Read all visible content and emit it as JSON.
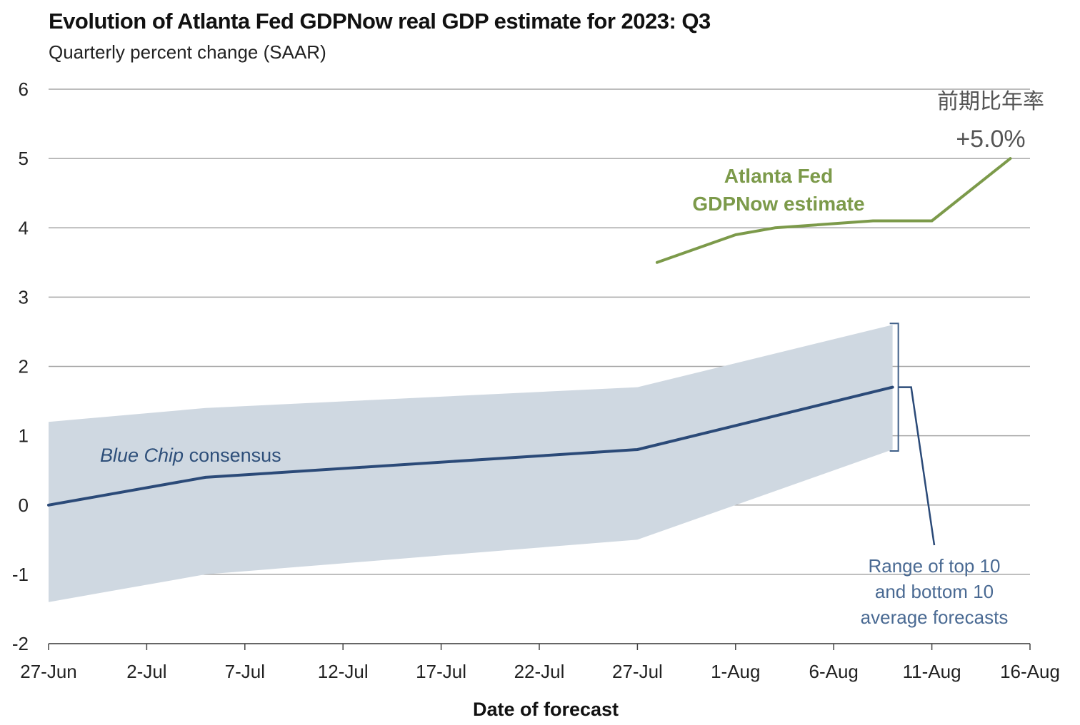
{
  "chart_data": {
    "type": "line",
    "title": "Evolution of Atlanta Fed GDPNow real GDP estimate for 2023: Q3",
    "subtitle": "Quarterly percent change (SAAR)",
    "xlabel": "Date of forecast",
    "ylabel": "",
    "ylim": [
      -2,
      6
    ],
    "y_ticks": [
      "6",
      "5",
      "4",
      "3",
      "2",
      "1",
      "0",
      "-1",
      "-2"
    ],
    "x_ticks": [
      "27-Jun",
      "2-Jul",
      "7-Jul",
      "12-Jul",
      "17-Jul",
      "22-Jul",
      "27-Jul",
      "1-Aug",
      "6-Aug",
      "11-Aug",
      "16-Aug"
    ],
    "grid": true,
    "series": [
      {
        "name": "Blue Chip consensus",
        "color": "#2b4a78",
        "points": [
          {
            "x": "2023-06-27",
            "y": 0.0
          },
          {
            "x": "2023-07-05",
            "y": 0.4
          },
          {
            "x": "2023-07-27",
            "y": 0.8
          },
          {
            "x": "2023-08-09",
            "y": 1.7
          }
        ]
      },
      {
        "name": "Atlanta Fed GDPNow estimate",
        "color": "#7c9a4a",
        "points": [
          {
            "x": "2023-07-28",
            "y": 3.5
          },
          {
            "x": "2023-08-01",
            "y": 3.9
          },
          {
            "x": "2023-08-03",
            "y": 4.0
          },
          {
            "x": "2023-08-08",
            "y": 4.1
          },
          {
            "x": "2023-08-11",
            "y": 4.1
          },
          {
            "x": "2023-08-15",
            "y": 5.0
          }
        ]
      }
    ],
    "range_band": {
      "color": "#cfd8e1",
      "upper": [
        {
          "x": "2023-06-27",
          "y": 1.2
        },
        {
          "x": "2023-07-05",
          "y": 1.4
        },
        {
          "x": "2023-07-27",
          "y": 1.7
        },
        {
          "x": "2023-08-09",
          "y": 2.6
        }
      ],
      "lower": [
        {
          "x": "2023-06-27",
          "y": -1.4
        },
        {
          "x": "2023-07-05",
          "y": -1.0
        },
        {
          "x": "2023-07-27",
          "y": -0.5
        },
        {
          "x": "2023-08-09",
          "y": 0.8
        }
      ]
    },
    "annotations": {
      "gdpnow_line1": "Atlanta Fed",
      "gdpnow_line2": "GDPNow estimate",
      "bluechip_italic": "Blue Chip",
      "bluechip_rest": " consensus",
      "range_line1": "Range of top 10",
      "range_line2": "and bottom 10",
      "range_line3": "average forecasts",
      "jp_label": "前期比年率",
      "latest_value": "+5.0%"
    }
  }
}
